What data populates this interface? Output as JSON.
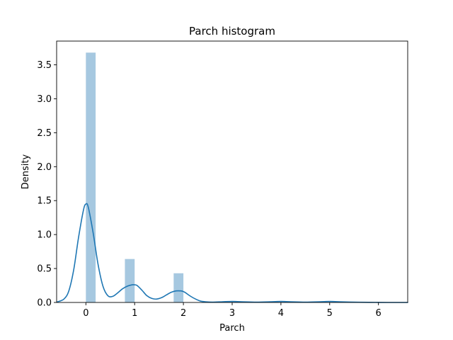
{
  "chart_data": {
    "type": "bar",
    "title": "Parch histogram",
    "xlabel": "Parch",
    "ylabel": "Density",
    "xlim": [
      -0.6,
      6.6
    ],
    "ylim": [
      0,
      3.85
    ],
    "xticks": [
      0,
      1,
      2,
      3,
      4,
      5,
      6
    ],
    "yticks": [
      0.0,
      0.5,
      1.0,
      1.5,
      2.0,
      2.5,
      3.0,
      3.5
    ],
    "grid": false,
    "colors": {
      "bars": "#a6c8e0",
      "kde": "#1f77b4"
    },
    "series": [
      {
        "kind": "histogram",
        "bins": [
          {
            "x0": 0.0,
            "x1": 0.2,
            "value": 3.68
          },
          {
            "x0": 0.8,
            "x1": 1.0,
            "value": 0.64
          },
          {
            "x0": 1.8,
            "x1": 2.0,
            "value": 0.43
          },
          {
            "x0": 2.8,
            "x1": 3.0,
            "value": 0.0
          },
          {
            "x0": 3.8,
            "x1": 4.0,
            "value": 0.0
          },
          {
            "x0": 4.8,
            "x1": 5.0,
            "value": 0.0
          },
          {
            "x0": 5.8,
            "x1": 6.0,
            "value": 0.0
          }
        ]
      },
      {
        "kind": "kde",
        "x": [
          -0.58,
          -0.45,
          -0.35,
          -0.25,
          -0.15,
          -0.05,
          0.0,
          0.05,
          0.15,
          0.25,
          0.35,
          0.45,
          0.55,
          0.65,
          0.75,
          0.85,
          0.95,
          1.0,
          1.05,
          1.15,
          1.25,
          1.35,
          1.45,
          1.55,
          1.65,
          1.75,
          1.85,
          1.95,
          2.0,
          2.05,
          2.15,
          2.25,
          2.35,
          2.45,
          2.6,
          2.8,
          3.0,
          3.2,
          3.5,
          3.8,
          4.0,
          4.2,
          4.5,
          4.8,
          5.0,
          5.2,
          5.5,
          5.8,
          6.0,
          6.2,
          6.4,
          6.6
        ],
        "y": [
          0.01,
          0.05,
          0.17,
          0.48,
          0.96,
          1.36,
          1.45,
          1.4,
          1.02,
          0.56,
          0.24,
          0.1,
          0.09,
          0.14,
          0.2,
          0.24,
          0.26,
          0.26,
          0.25,
          0.18,
          0.1,
          0.06,
          0.05,
          0.07,
          0.11,
          0.15,
          0.17,
          0.17,
          0.16,
          0.14,
          0.09,
          0.05,
          0.02,
          0.01,
          0.005,
          0.01,
          0.015,
          0.01,
          0.005,
          0.01,
          0.015,
          0.01,
          0.005,
          0.01,
          0.015,
          0.01,
          0.005,
          0.002,
          0.001,
          0.0,
          0.0,
          0.0
        ]
      }
    ]
  }
}
